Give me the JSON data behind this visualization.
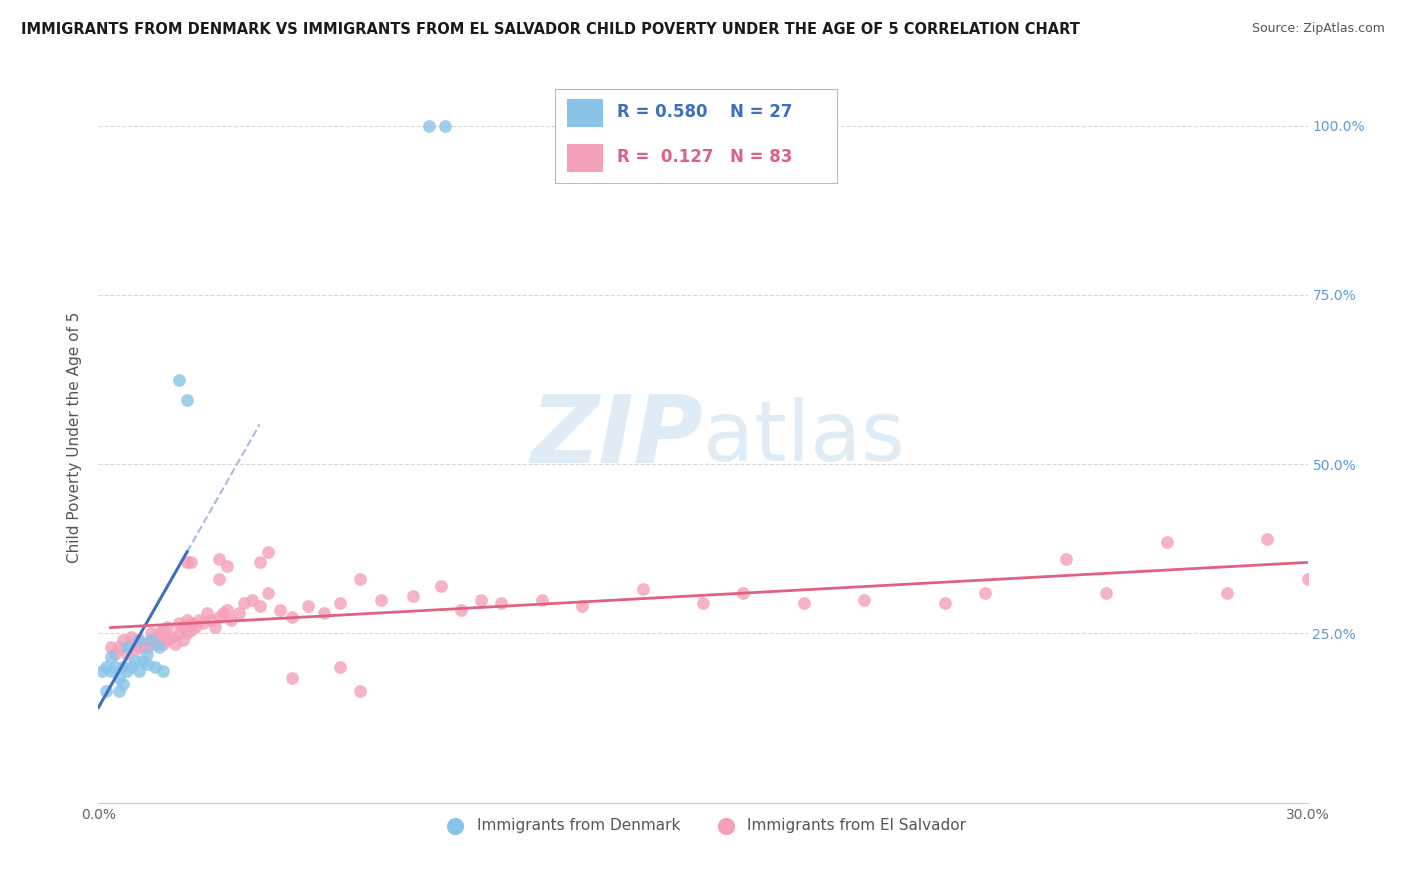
{
  "title": "IMMIGRANTS FROM DENMARK VS IMMIGRANTS FROM EL SALVADOR CHILD POVERTY UNDER THE AGE OF 5 CORRELATION CHART",
  "source": "Source: ZipAtlas.com",
  "ylabel": "Child Poverty Under the Age of 5",
  "legend_denmark": {
    "R": "0.580",
    "N": "27"
  },
  "legend_salvador": {
    "R": "0.127",
    "N": "83"
  },
  "legend_label_denmark": "Immigrants from Denmark",
  "legend_label_salvador": "Immigrants from El Salvador",
  "color_denmark": "#89c4e8",
  "color_salvador": "#f4a0b8",
  "color_denmark_line": "#3e6fbe",
  "color_salvador_line": "#e06080",
  "color_dash": "#aabbdd",
  "background_color": "#ffffff",
  "grid_color": "#d8d8d8",
  "watermark_color": "#c5ddf0",
  "denmark_scatter_x": [
    0.001,
    0.002,
    0.002,
    0.003,
    0.003,
    0.004,
    0.005,
    0.005,
    0.006,
    0.006,
    0.007,
    0.007,
    0.008,
    0.009,
    0.01,
    0.01,
    0.011,
    0.012,
    0.012,
    0.013,
    0.014,
    0.015,
    0.016,
    0.02,
    0.022,
    0.082,
    0.086
  ],
  "denmark_scatter_y": [
    0.195,
    0.2,
    0.165,
    0.195,
    0.215,
    0.2,
    0.165,
    0.185,
    0.175,
    0.2,
    0.195,
    0.23,
    0.2,
    0.21,
    0.195,
    0.24,
    0.21,
    0.22,
    0.205,
    0.24,
    0.2,
    0.23,
    0.195,
    0.625,
    0.595,
    1.0,
    1.0
  ],
  "salvador_scatter_x": [
    0.003,
    0.004,
    0.005,
    0.006,
    0.007,
    0.008,
    0.008,
    0.009,
    0.01,
    0.01,
    0.011,
    0.012,
    0.013,
    0.013,
    0.014,
    0.015,
    0.015,
    0.016,
    0.016,
    0.017,
    0.017,
    0.018,
    0.019,
    0.02,
    0.02,
    0.021,
    0.021,
    0.022,
    0.022,
    0.023,
    0.023,
    0.024,
    0.025,
    0.026,
    0.027,
    0.028,
    0.029,
    0.03,
    0.031,
    0.032,
    0.033,
    0.035,
    0.036,
    0.038,
    0.04,
    0.042,
    0.045,
    0.048,
    0.052,
    0.056,
    0.06,
    0.065,
    0.07,
    0.078,
    0.085,
    0.09,
    0.095,
    0.1,
    0.11,
    0.12,
    0.135,
    0.15,
    0.16,
    0.175,
    0.19,
    0.21,
    0.22,
    0.24,
    0.25,
    0.265,
    0.28,
    0.29,
    0.3,
    0.022,
    0.023,
    0.03,
    0.03,
    0.032,
    0.04,
    0.042,
    0.048,
    0.06,
    0.065
  ],
  "salvador_scatter_y": [
    0.23,
    0.22,
    0.23,
    0.24,
    0.22,
    0.235,
    0.245,
    0.225,
    0.23,
    0.24,
    0.235,
    0.23,
    0.24,
    0.25,
    0.235,
    0.24,
    0.25,
    0.235,
    0.255,
    0.24,
    0.26,
    0.245,
    0.235,
    0.25,
    0.265,
    0.24,
    0.26,
    0.25,
    0.27,
    0.255,
    0.265,
    0.26,
    0.27,
    0.265,
    0.28,
    0.27,
    0.26,
    0.275,
    0.28,
    0.285,
    0.27,
    0.28,
    0.295,
    0.3,
    0.29,
    0.31,
    0.285,
    0.275,
    0.29,
    0.28,
    0.295,
    0.33,
    0.3,
    0.305,
    0.32,
    0.285,
    0.3,
    0.295,
    0.3,
    0.29,
    0.315,
    0.295,
    0.31,
    0.295,
    0.3,
    0.295,
    0.31,
    0.36,
    0.31,
    0.385,
    0.31,
    0.39,
    0.33,
    0.355,
    0.355,
    0.33,
    0.36,
    0.35,
    0.355,
    0.37,
    0.185,
    0.2,
    0.165
  ],
  "xlim": [
    0.0,
    0.3
  ],
  "ylim": [
    0.0,
    1.08
  ],
  "ytick_positions": [
    0.0,
    0.25,
    0.5,
    0.75,
    1.0
  ],
  "xtick_positions": [
    0.0,
    0.05,
    0.1,
    0.15,
    0.2,
    0.25,
    0.3
  ]
}
